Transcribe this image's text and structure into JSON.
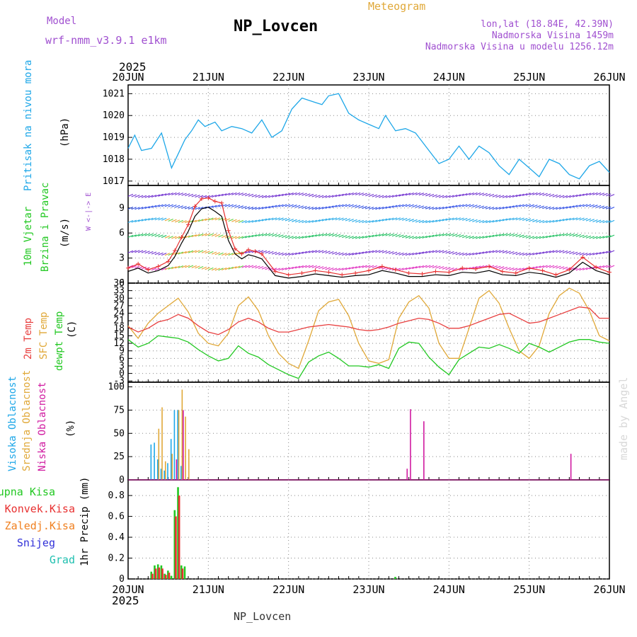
{
  "header": {
    "model_label": "Model",
    "model_name": "wrf-nmm_v3.9.1 e1km",
    "station": "NP_Lovcen",
    "meteogram": "Meteogram",
    "lonlat": "lon,lat (18.84E, 42.39N)",
    "altitude": "Nadmorska Visina 1459m",
    "model_altitude": "Nadmorska Visina u modelu 1256.12m",
    "year_top": "2025",
    "year_bottom": "2025",
    "footer": "NP_Lovcen",
    "credit": "made by Angel"
  },
  "colors": {
    "pressure": "#1ea7e8",
    "wind_speed": "#e83030",
    "wind_gust": "#000000",
    "t2m": "#e84040",
    "sfc": "#e0a838",
    "dew": "#22c822",
    "high_cloud": "#1ea7e8",
    "mid_cloud": "#e0a838",
    "low_cloud": "#d01aa0",
    "total_precip": "#22c822",
    "conv_precip": "#e83030",
    "frozen": "#f08020",
    "snow": "#3030d8",
    "graupel": "#20c0b0",
    "model_label": "#a050d0",
    "meteogram": "#e0a838",
    "wind_panel_label": "#22c822",
    "pressure_label": "#1ea7e8"
  },
  "axis": {
    "date_labels": [
      "20JUN",
      "21JUN",
      "22JUN",
      "23JUN",
      "24JUN",
      "25JUN",
      "26JUN"
    ],
    "hours_total": 144
  },
  "chart_data": [
    {
      "type": "line",
      "panel": "pressure",
      "ylabel_1": "Pritisak na nivou mora",
      "ylabel_2": "(hPa)",
      "ylim": [
        1016.8,
        1021.4
      ],
      "ticks": [
        "1017",
        "1018",
        "1019",
        "1020",
        "1021"
      ],
      "tick_values": [
        1017,
        1018,
        1019,
        1020,
        1021
      ],
      "series": [
        {
          "x": [
            0,
            2,
            4,
            7,
            10,
            13,
            17,
            19,
            21,
            23,
            26,
            28,
            31,
            34,
            37,
            40,
            43,
            46,
            49,
            52,
            56,
            58,
            60,
            63,
            66,
            69,
            72,
            75,
            77,
            80,
            83,
            86,
            90,
            93,
            96,
            99,
            102,
            105,
            108,
            111,
            114,
            117,
            120,
            123,
            126,
            129,
            132,
            135,
            138,
            141,
            144
          ],
          "values": [
            1018.5,
            1019.1,
            1018.4,
            1018.5,
            1019.2,
            1017.6,
            1018.9,
            1019.3,
            1019.8,
            1019.5,
            1019.7,
            1019.3,
            1019.5,
            1019.4,
            1019.2,
            1019.8,
            1019.0,
            1019.3,
            1020.3,
            1020.8,
            1020.6,
            1020.5,
            1020.9,
            1021.0,
            1020.1,
            1019.8,
            1019.6,
            1019.4,
            1020.0,
            1019.3,
            1019.4,
            1019.2,
            1018.4,
            1017.8,
            1018.0,
            1018.6,
            1018.0,
            1018.6,
            1018.3,
            1017.7,
            1017.3,
            1018.0,
            1017.6,
            1017.2,
            1018.0,
            1017.8,
            1017.3,
            1017.1,
            1017.7,
            1017.9,
            1017.4
          ]
        }
      ]
    },
    {
      "type": "line",
      "panel": "wind",
      "ylabel_1": "10m Vjetar",
      "ylabel_2": "Brzina i Pravac",
      "ylabel_3": "(m/s)",
      "compass": "W <-|-> E",
      "ylim": [
        0,
        11.7
      ],
      "ticks": [
        "0",
        "3",
        "6",
        "9"
      ],
      "tick_values": [
        0,
        3,
        6,
        9
      ],
      "series": [
        {
          "name": "speed",
          "x": [
            0,
            3,
            6,
            9,
            12,
            14,
            16,
            18,
            20,
            22,
            24,
            26,
            28,
            30,
            32,
            34,
            36,
            38,
            40,
            44,
            48,
            52,
            56,
            60,
            64,
            68,
            72,
            76,
            80,
            84,
            88,
            92,
            96,
            100,
            104,
            108,
            112,
            116,
            120,
            124,
            128,
            132,
            136,
            140,
            144
          ],
          "values": [
            1.8,
            2.3,
            1.6,
            2.0,
            2.6,
            3.9,
            5.5,
            7.0,
            9.2,
            10.1,
            10.2,
            9.8,
            9.6,
            6.3,
            4.1,
            3.5,
            4.0,
            3.8,
            3.5,
            1.4,
            1.0,
            1.2,
            1.5,
            1.3,
            1.0,
            1.2,
            1.5,
            2.0,
            1.6,
            1.2,
            1.1,
            1.4,
            1.3,
            1.8,
            1.7,
            2.0,
            1.4,
            1.2,
            1.8,
            1.5,
            1.0,
            1.6,
            3.1,
            1.9,
            1.3
          ]
        },
        {
          "name": "gust",
          "x": [
            0,
            3,
            6,
            9,
            12,
            14,
            16,
            18,
            20,
            22,
            24,
            26,
            28,
            30,
            32,
            34,
            36,
            38,
            40,
            44,
            48,
            52,
            56,
            60,
            64,
            68,
            72,
            76,
            80,
            84,
            88,
            92,
            96,
            100,
            104,
            108,
            112,
            116,
            120,
            124,
            128,
            132,
            136,
            140,
            144
          ],
          "values": [
            1.4,
            1.8,
            1.2,
            1.5,
            2.1,
            3.2,
            4.8,
            6.2,
            8.0,
            8.9,
            9.1,
            8.6,
            8.0,
            5.1,
            3.5,
            2.9,
            3.4,
            3.2,
            2.9,
            0.9,
            0.6,
            0.8,
            1.1,
            0.9,
            0.7,
            0.9,
            1.0,
            1.5,
            1.2,
            0.8,
            0.8,
            1.0,
            0.9,
            1.3,
            1.2,
            1.5,
            1.0,
            0.9,
            1.3,
            1.1,
            0.7,
            1.2,
            2.5,
            1.5,
            1.0
          ]
        }
      ]
    },
    {
      "type": "line",
      "panel": "temperature",
      "ylabel_1": "2m Temp",
      "ylabel_2": "SFC Temp",
      "ylabel_3": "dewpt Temp",
      "ylabel_4": "(C)",
      "ylim": [
        -3.5,
        36
      ],
      "ticks": [
        "-3",
        "0",
        "3",
        "6",
        "9",
        "12",
        "15",
        "18",
        "21",
        "24",
        "27",
        "30",
        "33",
        "36"
      ],
      "tick_values": [
        -3,
        0,
        3,
        6,
        9,
        12,
        15,
        18,
        21,
        24,
        27,
        30,
        33,
        36
      ],
      "series": [
        {
          "name": "2m Temp",
          "x": [
            0,
            3,
            6,
            9,
            12,
            15,
            18,
            21,
            24,
            27,
            30,
            33,
            36,
            39,
            42,
            45,
            48,
            51,
            54,
            57,
            60,
            63,
            66,
            69,
            72,
            75,
            78,
            81,
            84,
            87,
            90,
            93,
            96,
            99,
            102,
            105,
            108,
            111,
            114,
            117,
            120,
            123,
            126,
            129,
            132,
            135,
            138,
            141,
            144
          ],
          "values": [
            18.5,
            16.5,
            18.0,
            20.5,
            21.5,
            23.5,
            22.0,
            19.0,
            16.5,
            15.5,
            17.5,
            20.5,
            22.0,
            20.5,
            18.0,
            16.5,
            16.5,
            17.5,
            18.5,
            19.0,
            19.5,
            19.0,
            18.5,
            17.5,
            17.0,
            17.5,
            18.5,
            20.0,
            21.0,
            22.0,
            21.5,
            20.0,
            18.0,
            18.0,
            19.0,
            20.5,
            22.0,
            23.5,
            24.0,
            22.0,
            20.0,
            20.5,
            22.0,
            23.5,
            25.0,
            26.5,
            26.0,
            22.0,
            22.0
          ]
        },
        {
          "name": "SFC Temp",
          "x": [
            0,
            3,
            6,
            9,
            12,
            15,
            18,
            21,
            24,
            27,
            30,
            33,
            36,
            39,
            42,
            45,
            48,
            51,
            54,
            57,
            60,
            63,
            66,
            69,
            72,
            75,
            78,
            81,
            84,
            87,
            90,
            93,
            96,
            99,
            102,
            105,
            108,
            111,
            114,
            117,
            120,
            123,
            126,
            129,
            132,
            135,
            138,
            141,
            144
          ],
          "values": [
            19.0,
            14.0,
            20.0,
            24.0,
            27.0,
            30.0,
            24.5,
            16.0,
            12.0,
            11.0,
            16.0,
            27.0,
            30.5,
            25.0,
            15.0,
            8.0,
            4.0,
            2.0,
            13.0,
            25.0,
            28.5,
            29.5,
            23.0,
            12.0,
            5.0,
            4.0,
            5.5,
            22.0,
            28.5,
            31.0,
            26.0,
            12.0,
            6.0,
            6.0,
            18.0,
            30.0,
            33.0,
            28.0,
            18.0,
            9.0,
            6.0,
            11.0,
            24.0,
            31.0,
            34.0,
            32.0,
            25.0,
            15.0,
            13.0
          ]
        },
        {
          "name": "dewpt Temp",
          "x": [
            0,
            3,
            6,
            9,
            12,
            15,
            18,
            21,
            24,
            27,
            30,
            33,
            36,
            39,
            42,
            45,
            48,
            51,
            54,
            57,
            60,
            63,
            66,
            69,
            72,
            75,
            78,
            81,
            84,
            87,
            90,
            93,
            96,
            99,
            102,
            105,
            108,
            111,
            114,
            117,
            120,
            123,
            126,
            129,
            132,
            135,
            138,
            141,
            144
          ],
          "values": [
            13.5,
            10.5,
            12.0,
            15.0,
            14.5,
            14.0,
            12.5,
            9.5,
            7.0,
            5.0,
            6.0,
            11.0,
            8.0,
            6.5,
            3.5,
            1.5,
            -0.5,
            -2.0,
            4.5,
            7.0,
            8.5,
            6.0,
            3.0,
            3.0,
            2.5,
            3.5,
            2.0,
            10.0,
            12.5,
            12.0,
            6.5,
            2.5,
            -0.5,
            5.5,
            8.0,
            10.5,
            10.0,
            11.5,
            10.0,
            8.0,
            12.0,
            10.5,
            8.5,
            10.5,
            12.5,
            13.5,
            13.5,
            12.5,
            12.0
          ]
        }
      ]
    },
    {
      "type": "bar",
      "panel": "cloud",
      "ylabel_1": "Visoka Oblacnost",
      "ylabel_2": "Srednja Oblacnost",
      "ylabel_3": "Niska Oblacnost",
      "ylabel_4": "(%)",
      "ylim": [
        0,
        105
      ],
      "ticks": [
        "0",
        "25",
        "50",
        "75",
        "100"
      ],
      "tick_values": [
        0,
        25,
        50,
        75,
        100
      ],
      "series": [
        {
          "name": "Visoka Oblacnost",
          "x": [
            7,
            8,
            9,
            10,
            11,
            12,
            13,
            14,
            15,
            16
          ],
          "values": [
            38,
            40,
            22,
            12,
            10,
            18,
            44,
            75,
            75,
            15
          ]
        },
        {
          "name": "Srednja Oblacnost",
          "x": [
            9,
            10,
            11,
            13,
            15,
            16,
            17,
            18
          ],
          "values": [
            55,
            78,
            20,
            28,
            75,
            97,
            68,
            33
          ]
        },
        {
          "name": "Niska Oblacnost",
          "x": [
            14,
            16,
            83,
            84,
            88,
            132
          ],
          "values": [
            22,
            75,
            12,
            76,
            63,
            28
          ]
        }
      ]
    },
    {
      "type": "bar",
      "panel": "precip",
      "ylabel_1": "1hr Precip (mm)",
      "legend": [
        "Ukupna Kisa",
        "Konvek.Kisa",
        "Zaledj.Kisa",
        "Snijeg",
        "Grad"
      ],
      "ylim": [
        0,
        0.95
      ],
      "ticks": [
        "0",
        "0.2",
        "0.4",
        "0.6",
        "0.8"
      ],
      "tick_values": [
        0,
        0.2,
        0.4,
        0.6,
        0.8
      ],
      "series": [
        {
          "name": "Ukupna Kisa",
          "x": [
            7,
            8,
            9,
            10,
            11,
            12,
            13,
            14,
            15,
            16,
            17,
            80
          ],
          "values": [
            0.07,
            0.13,
            0.14,
            0.13,
            0.05,
            0.08,
            0.03,
            0.66,
            0.88,
            0.13,
            0.12,
            0.02
          ]
        },
        {
          "name": "Konvek.Kisa",
          "x": [
            7,
            8,
            9,
            10,
            11,
            12,
            14,
            15,
            16
          ],
          "values": [
            0.05,
            0.1,
            0.11,
            0.1,
            0.04,
            0.06,
            0.6,
            0.8,
            0.1
          ]
        }
      ]
    }
  ]
}
